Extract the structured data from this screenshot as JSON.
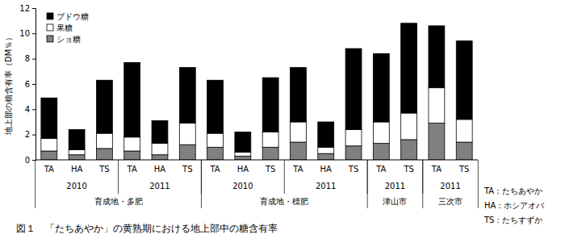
{
  "chart_data": {
    "type": "bar",
    "stacked": true,
    "title": "図１　「たちあやか」の黄熟期における地上部中の糖含有率",
    "y_label": "地上部の糖含有率（DM％）",
    "categories": [
      "TA",
      "HA",
      "TS",
      "TA",
      "HA",
      "TS",
      "TA",
      "HA",
      "TS",
      "TA",
      "HA",
      "TS",
      "TA",
      "TS",
      "TA",
      "TS"
    ],
    "year_groups": [
      {
        "label": "2010",
        "count": 3
      },
      {
        "label": "2011",
        "count": 3
      },
      {
        "label": "2010",
        "count": 3
      },
      {
        "label": "2011",
        "count": 3
      },
      {
        "label": "2011",
        "count": 2
      },
      {
        "label": "2011",
        "count": 2
      }
    ],
    "site_groups": [
      {
        "label": "育成地・多肥",
        "count": 6
      },
      {
        "label": "育成地・標肥",
        "count": 6
      },
      {
        "label": "津山市",
        "count": 2
      },
      {
        "label": "三次市",
        "count": 2
      }
    ],
    "series": [
      {
        "name": "ショ糖",
        "color": "#808080",
        "values": [
          0.7,
          0.4,
          0.9,
          0.7,
          0.4,
          1.2,
          1.0,
          0.3,
          1.0,
          1.4,
          0.5,
          1.1,
          1.3,
          1.6,
          2.9,
          1.4
        ]
      },
      {
        "name": "果糖",
        "color": "#ffffff",
        "values": [
          1.0,
          0.4,
          1.2,
          1.1,
          0.9,
          1.7,
          1.1,
          0.3,
          1.2,
          1.6,
          0.5,
          1.3,
          1.7,
          2.1,
          2.8,
          1.8
        ]
      },
      {
        "name": "ブドウ糖",
        "color": "#000000",
        "values": [
          3.2,
          1.6,
          4.2,
          5.9,
          1.8,
          4.4,
          4.2,
          1.6,
          4.3,
          4.3,
          2.0,
          6.4,
          5.4,
          7.1,
          4.9,
          6.2
        ]
      }
    ],
    "ylim": [
      0,
      12
    ],
    "yticks": [
      0,
      2,
      4,
      6,
      8,
      10,
      12
    ],
    "grid": false,
    "legend": "top-left",
    "annotations": [
      "TA：たちあやか",
      "HA：ホシアオバ",
      "TS：たちすずか"
    ]
  }
}
